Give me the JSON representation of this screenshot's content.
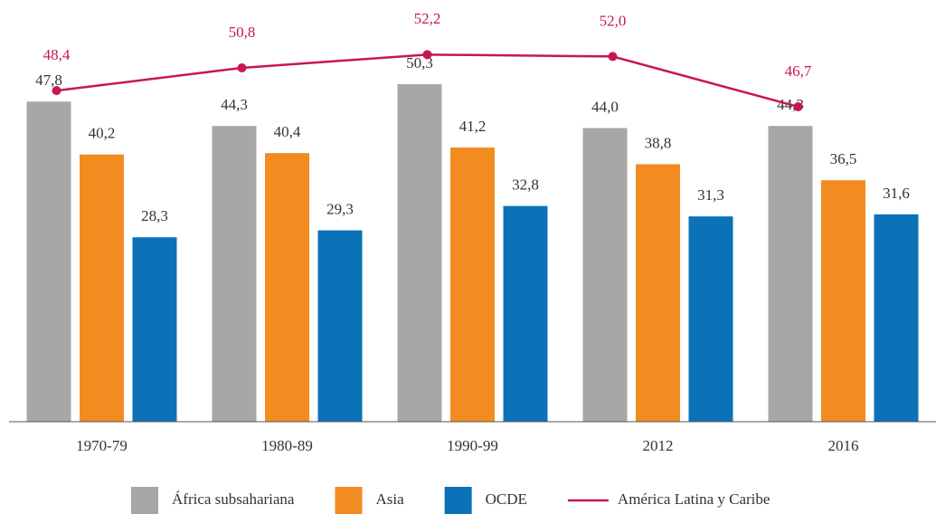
{
  "chart_data": {
    "type": "bar",
    "categories": [
      "1970-79",
      "1980-89",
      "1990-99",
      "2012",
      "2016"
    ],
    "series": [
      {
        "name": "África subsahariana",
        "color": "#a8a7a5",
        "values": [
          47.8,
          44.3,
          50.3,
          44.0,
          44.3
        ],
        "value_labels": [
          "47,8",
          "44,3",
          "50,3",
          "44,0",
          "44,3"
        ]
      },
      {
        "name": "Asia",
        "color": "#f28c20",
        "values": [
          40.2,
          40.4,
          41.2,
          38.8,
          36.5
        ],
        "value_labels": [
          "40,2",
          "40,4",
          "41,2",
          "38,8",
          "36,5"
        ]
      },
      {
        "name": "OCDE",
        "color": "#0b72b7",
        "values": [
          28.3,
          29.3,
          32.8,
          31.3,
          31.6
        ],
        "value_labels": [
          "28,3",
          "29,3",
          "32,8",
          "31,3",
          "31,6"
        ]
      },
      {
        "name": "América Latina y Caribe",
        "color": "#c8174f",
        "type": "line",
        "axis": "y2",
        "values": [
          48.4,
          50.8,
          52.2,
          52.0,
          46.7
        ],
        "value_labels": [
          "48,4",
          "50,8",
          "52,2",
          "52,0",
          "46,7"
        ]
      }
    ],
    "ylim": [
      1.8,
      61.1
    ],
    "y2lim": [
      13.5,
      57
    ],
    "legend": "bottom"
  }
}
